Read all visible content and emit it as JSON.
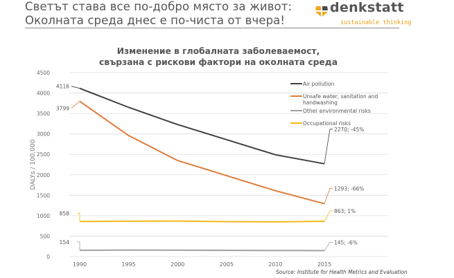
{
  "header": {
    "title_line1": "Светът става все по-добро място за живот:",
    "title_line2": "Околната среда днес е по-чиста от вчера!"
  },
  "logo": {
    "name": "denkstatt",
    "tagline": "sustainable thinking",
    "colors": {
      "mark": "#f0a81c",
      "mark_dark": "#4a4a4a",
      "text": "#555555",
      "tagline": "#e6a21a"
    }
  },
  "source": "Source: Institute for Health Metrics and Evaluation",
  "chart_data": {
    "type": "line",
    "title_line1": "Изменение в глобалната заболеваемост,",
    "title_line2": "свързана с рискови фактори на околната среда",
    "xlabel": "",
    "ylabel": "DALYs / 100,000",
    "x": [
      1990,
      1995,
      2000,
      2005,
      2010,
      2015
    ],
    "ylim": [
      0,
      4500
    ],
    "yticks": [
      0,
      500,
      1000,
      1500,
      2000,
      2500,
      3000,
      3500,
      4000,
      4500
    ],
    "grid": true,
    "legend_position": "right",
    "series": [
      {
        "name": "Air pollution",
        "color": "#3f3f3f",
        "values": [
          4116,
          3650,
          3230,
          2860,
          2490,
          2270
        ],
        "start_label": "4116",
        "end_label": "2270; -45%"
      },
      {
        "name": "Unsafe water,  sanitation  and handwashing",
        "color": "#e07b39",
        "values": [
          3799,
          2960,
          2350,
          1980,
          1610,
          1293
        ],
        "start_label": "3799",
        "end_label": "1293; -66%"
      },
      {
        "name": "Other environmental risks",
        "color": "#a0a0a0",
        "values": [
          154,
          158,
          156,
          152,
          148,
          145
        ],
        "start_label": "154",
        "end_label": "145; -6%"
      },
      {
        "name": "Occupational risks",
        "color": "#f2b818",
        "values": [
          858,
          865,
          870,
          855,
          848,
          863
        ],
        "start_label": "858",
        "end_label": "863; 1%"
      }
    ],
    "legend": [
      {
        "line1": "Air pollution",
        "line2": ""
      },
      {
        "line1": "Unsafe water,  sanitation  and",
        "line2": "handwashing"
      },
      {
        "line1": "Other environmental risks",
        "line2": ""
      },
      {
        "line1": "Occupational risks",
        "line2": ""
      }
    ]
  }
}
